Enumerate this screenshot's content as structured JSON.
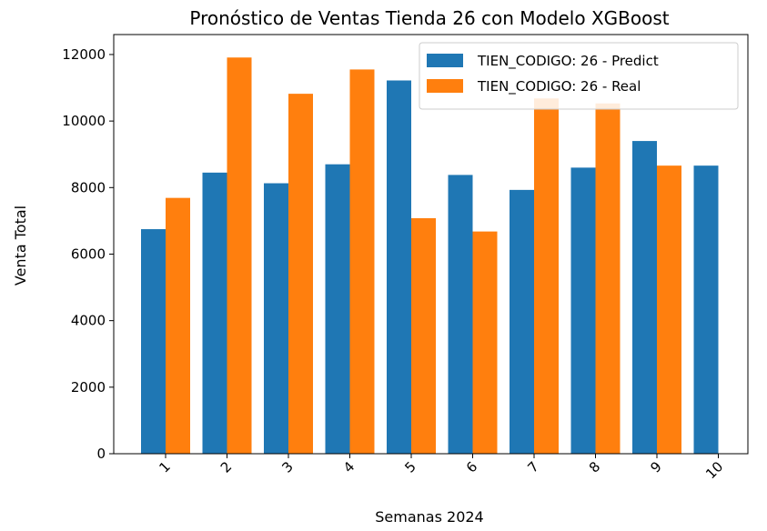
{
  "chart_data": {
    "type": "bar",
    "title": "Pronóstico de Ventas Tienda 26 con Modelo XGBoost",
    "xlabel": "Semanas 2024",
    "ylabel": "Venta Total",
    "categories": [
      "1",
      "2",
      "3",
      "4",
      "5",
      "6",
      "7",
      "8",
      "9",
      "10"
    ],
    "series": [
      {
        "name": "TIEN_CODIGO: 26 - Predict",
        "color": "#1f77b4",
        "values": [
          6750,
          8450,
          8130,
          8700,
          11220,
          8380,
          7930,
          8600,
          9400,
          8660
        ]
      },
      {
        "name": "TIEN_CODIGO: 26 - Real",
        "color": "#ff7f0e",
        "values": [
          7690,
          11910,
          10820,
          11550,
          7080,
          6680,
          10680,
          10530,
          8660,
          null
        ]
      }
    ],
    "ylim": [
      0,
      12600
    ],
    "yticks": [
      "0",
      "2000",
      "4000",
      "6000",
      "8000",
      "10000",
      "12000"
    ],
    "ytick_values": [
      0,
      2000,
      4000,
      6000,
      8000,
      10000,
      12000
    ],
    "legend_position": "top-right",
    "grid": false,
    "xtick_rotation": "45"
  }
}
